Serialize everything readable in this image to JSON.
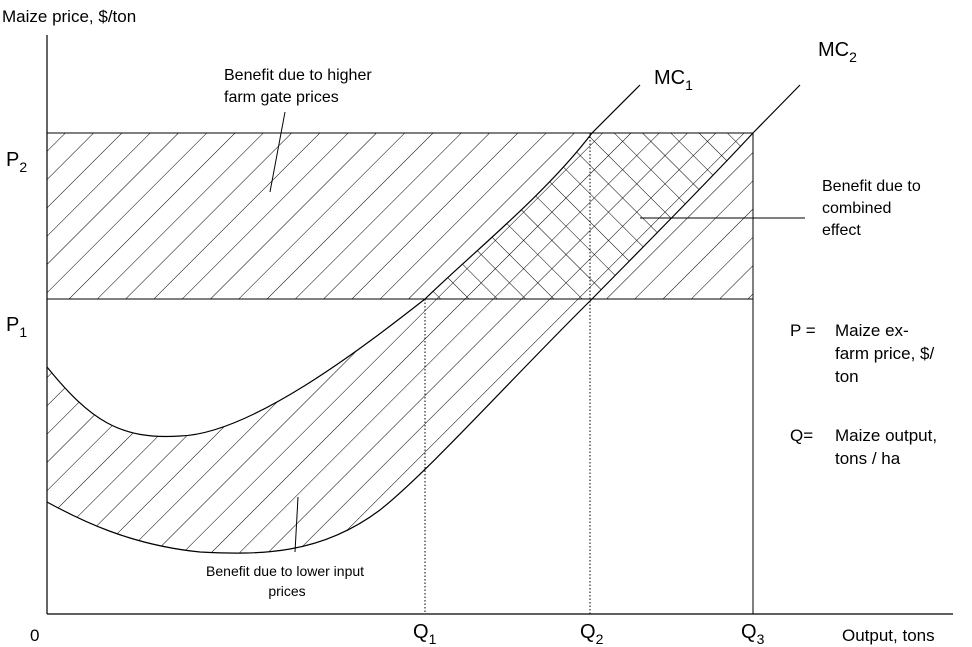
{
  "axes": {
    "y_label": "Maize price, $/ton",
    "x_label": "Output, tons",
    "origin": "0"
  },
  "prices": {
    "p2": {
      "sym": "P",
      "sub": "2"
    },
    "p1": {
      "sym": "P",
      "sub": "1"
    }
  },
  "quantities": {
    "q1": {
      "sym": "Q",
      "sub": "1"
    },
    "q2": {
      "sym": "Q",
      "sub": "2"
    },
    "q3": {
      "sym": "Q",
      "sub": "3"
    }
  },
  "curves": {
    "mc1": {
      "sym": "MC",
      "sub": "1"
    },
    "mc2": {
      "sym": "MC",
      "sub": "2"
    }
  },
  "annotations": {
    "higher_prices": [
      "Benefit due to higher",
      "farm gate prices"
    ],
    "combined": [
      "Benefit due to",
      "combined",
      "effect"
    ],
    "lower_inputs": [
      "Benefit due to lower input",
      "prices"
    ]
  },
  "legend": {
    "p_key": "P =",
    "p_text": [
      "Maize ex-",
      "farm price, $/",
      "ton"
    ],
    "q_key": "Q=",
    "q_text": [
      "Maize output,",
      "tons / ha"
    ]
  },
  "colors": {
    "line": "#000000",
    "background": "#ffffff"
  }
}
